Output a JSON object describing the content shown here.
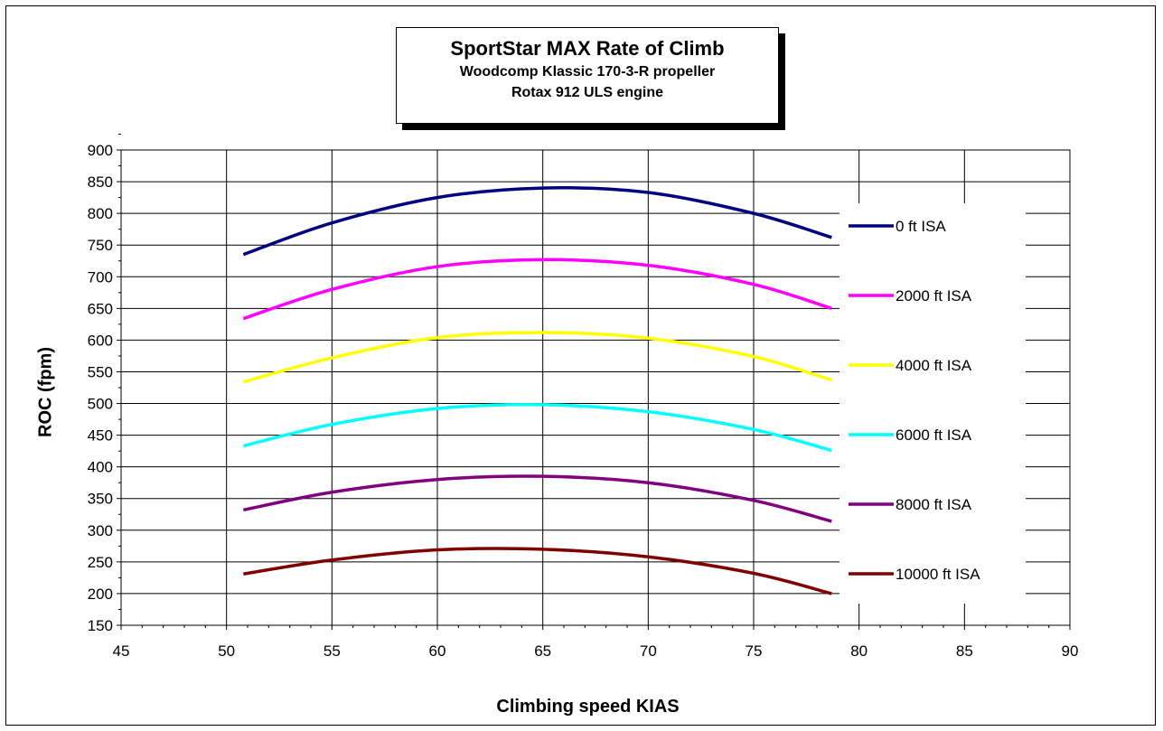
{
  "chart_data": {
    "type": "line",
    "title": "SportStar MAX Rate of Climb",
    "subtitle_line1": "Woodcomp Klassic 170-3-R propeller",
    "subtitle_line2": "Rotax 912 ULS engine",
    "xlabel": "Climbing speed KIAS",
    "ylabel": "ROC (fpm)",
    "xlim": [
      45,
      90
    ],
    "ylim": [
      150,
      900
    ],
    "x_ticks": [
      "45",
      "50",
      "55",
      "60",
      "65",
      "70",
      "75",
      "80",
      "85",
      "90"
    ],
    "y_ticks": [
      "150",
      "200",
      "250",
      "300",
      "350",
      "400",
      "450",
      "500",
      "550",
      "600",
      "650",
      "700",
      "750",
      "800",
      "850",
      "900"
    ],
    "grid": true,
    "legend_position": "right",
    "x": [
      50.8,
      55,
      60,
      65,
      70,
      75,
      78.7
    ],
    "series": [
      {
        "name": "0 ft ISA",
        "color": "#000080",
        "values": [
          735,
          785,
          825,
          840,
          833,
          800,
          762
        ]
      },
      {
        "name": "2000 ft ISA",
        "color": "#ff00ff",
        "values": [
          634,
          680,
          716,
          727,
          718,
          688,
          650
        ]
      },
      {
        "name": "4000 ft ISA",
        "color": "#ffff00",
        "values": [
          534,
          572,
          604,
          612,
          603,
          574,
          537
        ]
      },
      {
        "name": "6000 ft ISA",
        "color": "#00ffff",
        "values": [
          433,
          467,
          492,
          498,
          487,
          459,
          426
        ]
      },
      {
        "name": "8000 ft ISA",
        "color": "#800080",
        "values": [
          332,
          360,
          380,
          385,
          375,
          347,
          314
        ]
      },
      {
        "name": "10000 ft ISA",
        "color": "#800000",
        "values": [
          231,
          253,
          269,
          270,
          258,
          232,
          200
        ]
      }
    ]
  }
}
